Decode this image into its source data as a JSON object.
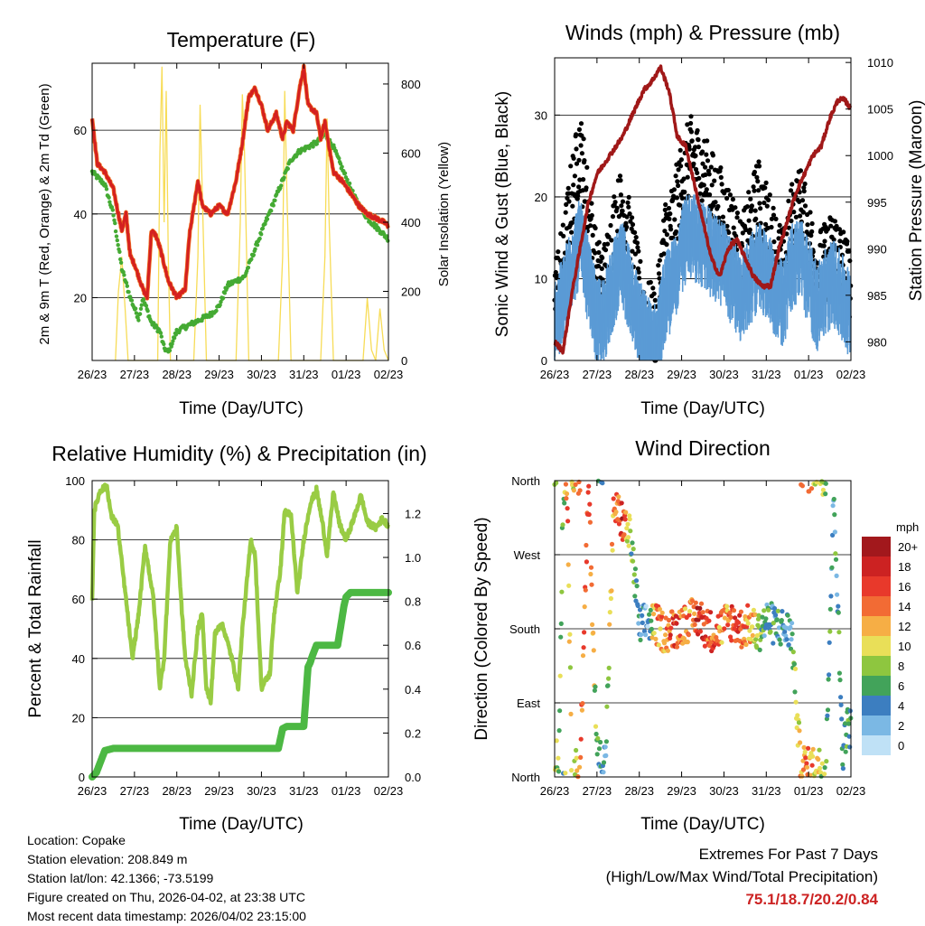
{
  "colors": {
    "temp_red": "#d42020",
    "temp_orange": "#f07020",
    "dew_green": "#44aa33",
    "solar_yellow": "#f7dc57",
    "gust_black": "#000000",
    "wind_blue": "#5b9bd5",
    "pressure_maroon": "#a01818",
    "rh_lightgreen": "#99cc44",
    "precip_green": "#4cb843",
    "extremes_red": "#cc2222"
  },
  "x_ticks": [
    "26/23",
    "27/23",
    "28/23",
    "29/23",
    "30/23",
    "31/23",
    "01/23",
    "02/23"
  ],
  "time_label": "Time (Day/UTC)",
  "chart_data": [
    {
      "id": "temperature",
      "type": "line",
      "title": "Temperature (F)",
      "xlabel": "Time (Day/UTC)",
      "ylabel": "2m & 9m T (Red, Orange) & 2m Td (Green)",
      "ylabel_right": "Solar Insolation (Yellow)",
      "x_range": [
        0,
        7
      ],
      "ylim": [
        5,
        76
      ],
      "yticks": [
        20,
        40,
        60
      ],
      "ylim_right": [
        0,
        860
      ],
      "yticks_right": [
        0,
        200,
        400,
        600,
        800
      ],
      "series": [
        {
          "name": "2m & 9m T",
          "x": [
            0,
            0.12,
            0.3,
            0.5,
            0.7,
            0.8,
            0.9,
            1.0,
            1.2,
            1.3,
            1.4,
            1.5,
            1.6,
            1.7,
            1.8,
            1.9,
            2.0,
            2.2,
            2.3,
            2.5,
            2.6,
            2.8,
            3.0,
            3.2,
            3.4,
            3.55,
            3.7,
            3.85,
            4.0,
            4.15,
            4.35,
            4.5,
            4.6,
            4.75,
            4.9,
            5.0,
            5.1,
            5.3,
            5.4,
            5.5,
            5.7,
            5.9,
            6.1,
            6.3,
            6.5,
            6.7,
            6.9,
            7.0
          ],
          "values": [
            63,
            52,
            50,
            46,
            36,
            40,
            30,
            28,
            22,
            20,
            36,
            35,
            32,
            28,
            24,
            22,
            20,
            22,
            35,
            48,
            42,
            40,
            42,
            40,
            48,
            57,
            68,
            70,
            66,
            60,
            64,
            58,
            62,
            60,
            70,
            75,
            66,
            64,
            58,
            62,
            50,
            48,
            45,
            42,
            40,
            39,
            38,
            37
          ]
        },
        {
          "name": "2m Td",
          "x": [
            0,
            0.3,
            0.5,
            0.7,
            0.9,
            1.1,
            1.2,
            1.4,
            1.6,
            1.7,
            1.8,
            2.0,
            2.4,
            2.8,
            3.0,
            3.2,
            3.6,
            3.9,
            4.3,
            4.5,
            4.7,
            4.9,
            5.1,
            5.3,
            5.5,
            5.7,
            5.9,
            6.2,
            6.5,
            6.8,
            7.0
          ],
          "values": [
            50,
            47,
            40,
            27,
            20,
            15,
            20,
            14,
            12,
            8,
            7,
            12,
            14,
            16,
            18,
            23,
            25,
            33,
            43,
            48,
            53,
            55,
            56,
            57,
            59,
            56,
            51,
            44,
            39,
            36,
            34
          ]
        },
        {
          "name": "Solar Insolation",
          "x": [
            0.55,
            0.62,
            0.7,
            0.78,
            0.85,
            1.55,
            1.6,
            1.65,
            1.7,
            1.75,
            1.8,
            1.85,
            2.4,
            2.5,
            2.55,
            2.6,
            2.7,
            3.4,
            3.5,
            3.55,
            3.6,
            3.7,
            4.4,
            4.5,
            4.55,
            4.6,
            4.7,
            5.4,
            5.5,
            5.55,
            5.6,
            5.7,
            6.4,
            6.5,
            6.6,
            6.7,
            6.8,
            6.9,
            7.0
          ],
          "values": [
            0,
            200,
            300,
            150,
            0,
            0,
            600,
            850,
            400,
            780,
            300,
            0,
            0,
            300,
            740,
            500,
            0,
            0,
            400,
            770,
            600,
            0,
            0,
            300,
            780,
            500,
            0,
            0,
            300,
            700,
            400,
            0,
            0,
            180,
            30,
            0,
            150,
            30,
            0
          ]
        }
      ]
    },
    {
      "id": "winds",
      "type": "scatter",
      "title": "Winds (mph) & Pressure (mb)",
      "xlabel": "Time (Day/UTC)",
      "ylabel": "Sonic Wind & Gust (Blue, Black)",
      "ylabel_right": "Station Pressure (Maroon)",
      "x_range": [
        0,
        7
      ],
      "ylim": [
        0,
        37
      ],
      "yticks": [
        0,
        10,
        20,
        30
      ],
      "ylim_right": [
        978,
        1010.5
      ],
      "yticks_right": [
        980,
        985,
        990,
        995,
        1000,
        1005,
        1010
      ],
      "series": [
        {
          "name": "Sonic Wind",
          "x": [
            0,
            0.2,
            0.4,
            0.6,
            0.8,
            1.0,
            1.2,
            1.4,
            1.6,
            1.8,
            2.0,
            2.2,
            2.4,
            2.6,
            2.8,
            3.0,
            3.2,
            3.4,
            3.6,
            3.8,
            4.0,
            4.2,
            4.4,
            4.6,
            4.8,
            5.0,
            5.2,
            5.4,
            5.6,
            5.8,
            6.0,
            6.2,
            6.4,
            6.6,
            6.8,
            7.0
          ],
          "values": [
            5,
            8,
            12,
            15,
            10,
            5,
            6,
            10,
            12,
            9,
            5,
            3,
            2,
            8,
            10,
            14,
            16,
            15,
            14,
            13,
            12,
            10,
            8,
            10,
            12,
            11,
            9,
            7,
            12,
            13,
            10,
            7,
            9,
            10,
            8,
            6
          ]
        },
        {
          "name": "Gust",
          "x": [
            0,
            0.2,
            0.4,
            0.6,
            0.8,
            1.0,
            1.2,
            1.4,
            1.6,
            1.8,
            2.0,
            2.2,
            2.4,
            2.6,
            2.8,
            3.0,
            3.2,
            3.4,
            3.6,
            3.8,
            4.0,
            4.2,
            4.4,
            4.6,
            4.8,
            5.0,
            5.2,
            5.4,
            5.6,
            5.8,
            6.0,
            6.2,
            6.4,
            6.6,
            6.8,
            7.0
          ],
          "values": [
            8,
            12,
            20,
            26,
            18,
            10,
            10,
            16,
            19,
            14,
            8,
            5,
            4,
            15,
            17,
            22,
            25,
            24,
            22,
            20,
            18,
            16,
            12,
            16,
            20,
            17,
            14,
            11,
            17,
            19,
            15,
            11,
            12,
            14,
            12,
            9
          ]
        },
        {
          "name": "Station Pressure",
          "x": [
            0,
            0.2,
            0.4,
            0.6,
            0.8,
            1.0,
            1.3,
            1.6,
            1.9,
            2.1,
            2.3,
            2.5,
            2.7,
            2.9,
            3.1,
            3.3,
            3.5,
            3.7,
            3.9,
            4.1,
            4.3,
            4.5,
            4.7,
            4.9,
            5.1,
            5.3,
            5.5,
            5.7,
            5.9,
            6.1,
            6.3,
            6.5,
            6.7,
            6.85,
            7.0
          ],
          "values": [
            980,
            979,
            985,
            990,
            995,
            998,
            1000,
            1002,
            1005,
            1007,
            1008,
            1009.5,
            1007,
            1002,
            1001,
            997,
            993,
            989,
            987,
            990,
            991,
            989,
            987,
            986,
            986,
            990,
            993,
            996,
            998,
            1000,
            1001,
            1004,
            1006,
            1006,
            1005
          ]
        }
      ]
    },
    {
      "id": "humidity_precip",
      "type": "line",
      "title": "Relative Humidity (%) & Precipitation (in)",
      "xlabel": "Time (Day/UTC)",
      "ylabel": "Percent & Total Rainfall",
      "ylabel_right": "",
      "x_range": [
        0,
        7
      ],
      "ylim": [
        0,
        100
      ],
      "yticks": [
        0,
        20,
        40,
        60,
        80,
        100
      ],
      "ylim_right": [
        0,
        1.35
      ],
      "yticks_right": [
        0.0,
        0.2,
        0.4,
        0.6,
        0.8,
        1.0,
        1.2
      ],
      "series": [
        {
          "name": "Relative Humidity",
          "x": [
            0,
            0.05,
            0.2,
            0.35,
            0.45,
            0.6,
            0.8,
            0.95,
            1.1,
            1.25,
            1.45,
            1.6,
            1.7,
            1.85,
            2.0,
            2.1,
            2.2,
            2.35,
            2.5,
            2.6,
            2.7,
            2.8,
            2.9,
            3.05,
            3.15,
            3.3,
            3.45,
            3.55,
            3.75,
            3.85,
            4.0,
            4.2,
            4.3,
            4.45,
            4.55,
            4.7,
            4.85,
            5.0,
            5.15,
            5.3,
            5.45,
            5.55,
            5.7,
            5.85,
            6.0,
            6.2,
            6.35,
            6.5,
            6.7,
            6.85,
            7.0
          ],
          "values": [
            60,
            90,
            97,
            98,
            88,
            85,
            60,
            40,
            55,
            78,
            60,
            30,
            40,
            80,
            84,
            60,
            40,
            28,
            50,
            55,
            30,
            25,
            48,
            52,
            48,
            40,
            30,
            50,
            80,
            75,
            30,
            35,
            55,
            70,
            90,
            88,
            62,
            80,
            92,
            97,
            85,
            75,
            96,
            85,
            80,
            88,
            95,
            86,
            84,
            87,
            85
          ]
        },
        {
          "name": "Total Precipitation",
          "axis": "right",
          "x": [
            0,
            0.1,
            0.3,
            0.5,
            1.0,
            2.0,
            3.0,
            4.0,
            4.4,
            4.5,
            4.6,
            5.0,
            5.1,
            5.15,
            5.2,
            5.3,
            5.4,
            5.8,
            5.95,
            6.0,
            6.1,
            6.3,
            7.0
          ],
          "values": [
            0.0,
            0.02,
            0.12,
            0.13,
            0.13,
            0.13,
            0.13,
            0.13,
            0.13,
            0.22,
            0.23,
            0.23,
            0.5,
            0.52,
            0.55,
            0.6,
            0.6,
            0.6,
            0.78,
            0.82,
            0.84,
            0.84,
            0.84
          ]
        }
      ]
    },
    {
      "id": "wind_direction",
      "type": "scatter",
      "title": "Wind Direction",
      "xlabel": "Time (Day/UTC)",
      "ylabel": "Direction (Colored By Speed)",
      "x_range": [
        0,
        7
      ],
      "ylim": [
        0,
        360
      ],
      "ytick_values": [
        0,
        90,
        180,
        270,
        360
      ],
      "ytick_labels": [
        "North",
        "East",
        "South",
        "West",
        "North"
      ],
      "legend_title": "mph",
      "legend_labels": [
        "20+",
        "18",
        "16",
        "14",
        "12",
        "10",
        "8",
        "6",
        "4",
        "2",
        "0"
      ],
      "legend_colors": [
        "#a2181c",
        "#cc2222",
        "#e8392b",
        "#f26b34",
        "#f6ae45",
        "#e9df58",
        "#8ec63f",
        "#42a35a",
        "#3c7ec0",
        "#7bb8e4",
        "#bfe1f6"
      ],
      "series": [
        {
          "name": "Directions",
          "x": [
            0.1,
            0.2,
            0.3,
            0.4,
            0.6,
            0.8,
            1.0,
            1.2,
            1.4,
            1.5,
            1.6,
            1.7,
            1.8,
            2.0,
            2.2,
            2.4,
            2.6,
            2.8,
            3.0,
            3.2,
            3.4,
            3.6,
            3.8,
            4.0,
            4.2,
            4.4,
            4.6,
            4.8,
            5.0,
            5.2,
            5.4,
            5.6,
            5.8,
            6.0,
            6.2,
            6.4,
            6.6,
            6.8,
            6.9
          ],
          "directions": [
            20,
            355,
            350,
            15,
            5,
            355,
            25,
            20,
            330,
            320,
            310,
            300,
            290,
            180,
            190,
            185,
            175,
            180,
            185,
            190,
            195,
            180,
            175,
            185,
            190,
            180,
            185,
            175,
            190,
            185,
            180,
            175,
            20,
            10,
            15,
            5,
            350,
            30,
            60
          ],
          "speeds": [
            8,
            6,
            14,
            10,
            12,
            16,
            6,
            4,
            14,
            12,
            18,
            10,
            8,
            4,
            2,
            14,
            12,
            16,
            14,
            12,
            18,
            16,
            14,
            12,
            16,
            14,
            12,
            10,
            4,
            6,
            2,
            4,
            12,
            14,
            10,
            8,
            4,
            6,
            6
          ]
        }
      ]
    }
  ],
  "info": {
    "location": "Location: Copake",
    "elevation": "Station elevation: 208.849 m",
    "latlon": "Station lat/lon: 42.1366; -73.5199",
    "created": "Figure created on Thu, 2026-04-02, at 23:38 UTC",
    "recent": "Most recent data timestamp: 2026/04/02 23:15:00"
  },
  "extremes": {
    "line1": "Extremes For Past 7 Days",
    "line2": "(High/Low/Max Wind/Total Precipitation)",
    "values": "75.1/18.7/20.2/0.84"
  }
}
